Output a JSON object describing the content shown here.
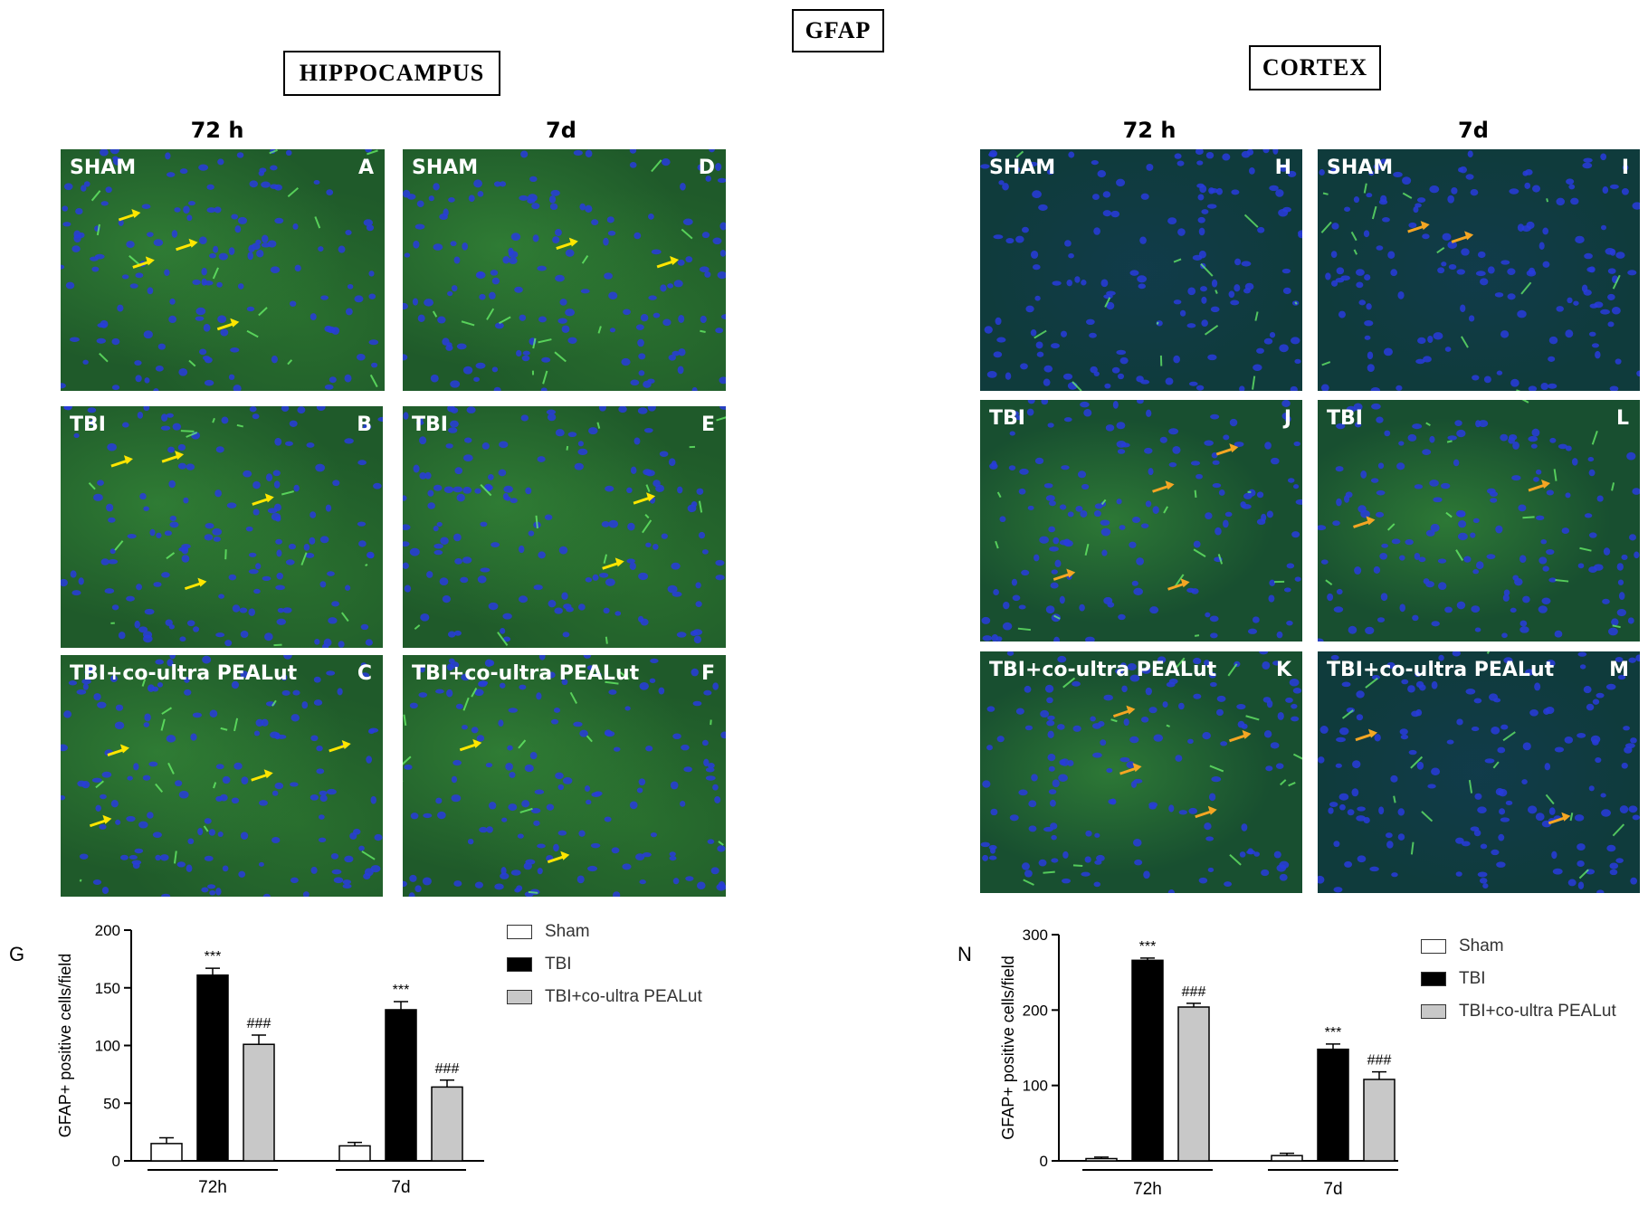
{
  "figure": {
    "main_title": "GFAP",
    "hippocampus_title": "HIPPOCAMPUS",
    "cortex_title": "CORTEX",
    "column_headers": {
      "hippo_72h": "72 h",
      "hippo_7d": "7d",
      "cortex_72h": "72 h",
      "cortex_7d": "7d"
    }
  },
  "panels": {
    "A": {
      "label": "SHAM",
      "letter": "A"
    },
    "B": {
      "label": "TBI",
      "letter": "B"
    },
    "C": {
      "label": "TBI+co-ultra PEALut",
      "letter": "C"
    },
    "D": {
      "label": "SHAM",
      "letter": "D"
    },
    "E": {
      "label": "TBI",
      "letter": "E"
    },
    "F": {
      "label": "TBI+co-ultra PEALut",
      "letter": "F"
    },
    "H": {
      "label": "SHAM",
      "letter": "H"
    },
    "I": {
      "label": "SHAM",
      "letter": "I"
    },
    "J": {
      "label": "TBI",
      "letter": "J"
    },
    "L": {
      "label": "TBI",
      "letter": "L"
    },
    "K": {
      "label": "TBI+co-ultra PEALut",
      "letter": "K"
    },
    "M": {
      "label": "TBI+co-ultra PEALut",
      "letter": "M"
    }
  },
  "arrow_colors": {
    "hippocampus": "#ffe600",
    "cortex": "#f5a623"
  },
  "legend": {
    "items": [
      {
        "label": "Sham",
        "color": "#ffffff"
      },
      {
        "label": "TBI",
        "color": "#000000"
      },
      {
        "label": "TBI+co-ultra PEALut",
        "color": "#c8c8c8"
      }
    ]
  },
  "chart_data": [
    {
      "panel_letter": "G",
      "type": "bar",
      "ylabel": "GFAP+ positive cells/field",
      "ylim": [
        0,
        200
      ],
      "yticks": [
        0,
        50,
        100,
        150,
        200
      ],
      "categories": [
        "72h",
        "7d"
      ],
      "series": [
        {
          "name": "Sham",
          "values": [
            15,
            13
          ],
          "errors": [
            5,
            3
          ],
          "color": "#ffffff"
        },
        {
          "name": "TBI",
          "values": [
            161,
            131
          ],
          "errors": [
            6,
            7
          ],
          "color": "#000000"
        },
        {
          "name": "TBI+co-ultra PEALut",
          "values": [
            101,
            64
          ],
          "errors": [
            8,
            6
          ],
          "color": "#c8c8c8"
        }
      ],
      "annotations": [
        {
          "category": "72h",
          "series": "TBI",
          "text": "***"
        },
        {
          "category": "72h",
          "series": "TBI+co-ultra PEALut",
          "text": "###"
        },
        {
          "category": "7d",
          "series": "TBI",
          "text": "***"
        },
        {
          "category": "7d",
          "series": "TBI+co-ultra PEALut",
          "text": "###"
        }
      ],
      "legend_position": "right"
    },
    {
      "panel_letter": "N",
      "type": "bar",
      "ylabel": "GFAP+ positive cells/field",
      "ylim": [
        0,
        300
      ],
      "yticks": [
        0,
        100,
        200,
        300
      ],
      "categories": [
        "72h",
        "7d"
      ],
      "series": [
        {
          "name": "Sham",
          "values": [
            3,
            7
          ],
          "errors": [
            2,
            3
          ],
          "color": "#ffffff"
        },
        {
          "name": "TBI",
          "values": [
            266,
            148
          ],
          "errors": [
            3,
            7
          ],
          "color": "#000000"
        },
        {
          "name": "TBI+co-ultra PEALut",
          "values": [
            204,
            108
          ],
          "errors": [
            5,
            10
          ],
          "color": "#c8c8c8"
        }
      ],
      "annotations": [
        {
          "category": "72h",
          "series": "TBI",
          "text": "***"
        },
        {
          "category": "72h",
          "series": "TBI+co-ultra PEALut",
          "text": "###"
        },
        {
          "category": "7d",
          "series": "TBI",
          "text": "***"
        },
        {
          "category": "7d",
          "series": "TBI+co-ultra PEALut",
          "text": "###"
        }
      ],
      "legend_position": "right"
    }
  ]
}
